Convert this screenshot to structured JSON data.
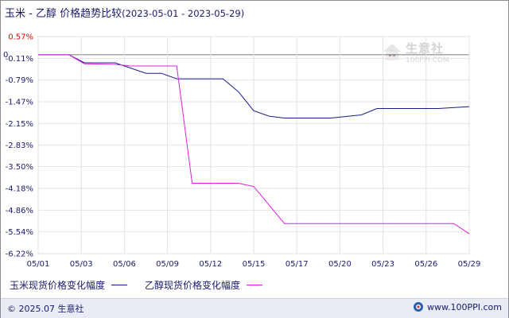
{
  "title": {
    "main": "玉米 - 乙醇 价格趋势比较",
    "range": "(2023-05-01 - 2023-05-29)"
  },
  "watermark": {
    "name": "生意社",
    "url": "100PPI.COM"
  },
  "footer": {
    "copyright": "© 2025.07 生意社",
    "site": "www.100PPI.com"
  },
  "chart_data": {
    "type": "line",
    "x_tick_labels": [
      "05/01",
      "05/03",
      "05/06",
      "05/09",
      "05/12",
      "05/15",
      "05/17",
      "05/20",
      "05/23",
      "05/26",
      "05/29"
    ],
    "y_tick_labels": [
      "0.57%",
      "-0.11%",
      "-0.79%",
      "-1.47%",
      "-2.15%",
      "-2.83%",
      "-3.50%",
      "-4.18%",
      "-4.86%",
      "-5.54%",
      "-6.22%"
    ],
    "y_ticks": [
      0.57,
      -0.11,
      -0.79,
      -1.47,
      -2.15,
      -2.83,
      -3.5,
      -4.18,
      -4.86,
      -5.54,
      -6.22
    ],
    "ylim": [
      -6.22,
      0.57
    ],
    "xlim": [
      "2023-05-01",
      "2023-05-29"
    ],
    "zero_line_label": "0",
    "series": [
      {
        "name": "玉米现货价格变化幅度",
        "color": "#1a1a8c",
        "points": [
          [
            "2023-05-01",
            0.0
          ],
          [
            "2023-05-03",
            0.0
          ],
          [
            "2023-05-04",
            -0.25
          ],
          [
            "2023-05-06",
            -0.25
          ],
          [
            "2023-05-08",
            -0.58
          ],
          [
            "2023-05-09",
            -0.58
          ],
          [
            "2023-05-10",
            -0.75
          ],
          [
            "2023-05-13",
            -0.75
          ],
          [
            "2023-05-14",
            -1.15
          ],
          [
            "2023-05-15",
            -1.75
          ],
          [
            "2023-05-16",
            -1.92
          ],
          [
            "2023-05-17",
            -1.98
          ],
          [
            "2023-05-20",
            -1.98
          ],
          [
            "2023-05-22",
            -1.88
          ],
          [
            "2023-05-23",
            -1.68
          ],
          [
            "2023-05-27",
            -1.68
          ],
          [
            "2023-05-29",
            -1.62
          ]
        ]
      },
      {
        "name": "乙醇现货价格变化幅度",
        "color": "#e020e0",
        "points": [
          [
            "2023-05-01",
            0.0
          ],
          [
            "2023-05-03",
            0.0
          ],
          [
            "2023-05-04",
            -0.28
          ],
          [
            "2023-05-06",
            -0.3
          ],
          [
            "2023-05-07",
            -0.35
          ],
          [
            "2023-05-10",
            -0.35
          ],
          [
            "2023-05-11",
            -4.02
          ],
          [
            "2023-05-14",
            -4.02
          ],
          [
            "2023-05-15",
            -4.12
          ],
          [
            "2023-05-17",
            -5.28
          ],
          [
            "2023-05-28",
            -5.28
          ],
          [
            "2023-05-29",
            -5.6
          ]
        ]
      }
    ],
    "grid": true,
    "legend_position": "bottom"
  }
}
